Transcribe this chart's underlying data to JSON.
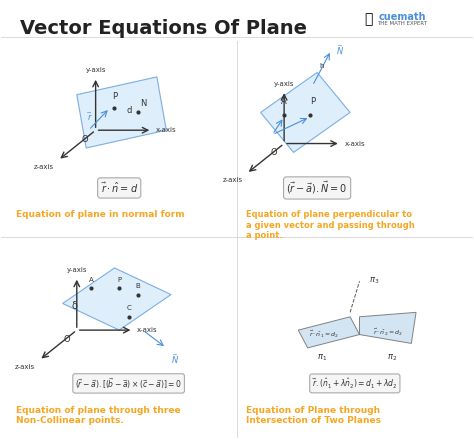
{
  "title": "Vector Equations Of Plane",
  "title_fontsize": 14,
  "title_color": "#222222",
  "bg_color": "#ffffff",
  "orange_color": "#f5a623",
  "blue_color": "#4a90d9",
  "light_blue": "#d0e8f8",
  "axis_color": "#333333",
  "formula_bg": "#f0f0f0",
  "panel1": {
    "formula": "$\\vec{r}\\cdot\\hat{n}=d$",
    "caption": "Equation of plane in normal form"
  },
  "panel2": {
    "formula": "$(\\vec{r}-\\vec{a}).\\vec{N}=0$",
    "caption": "Equation of plane perpendicular to\na given vector and passing through\na point."
  },
  "panel3": {
    "formula": "$(\\vec{r}-\\vec{a}).[(\\vec{b}-\\vec{a})\\times(\\vec{c}-\\vec{a})]=0$",
    "caption": "Equation of plane through three\nNon-Collinear points."
  },
  "panel4": {
    "formula": "$\\vec{r}.(\\hat{n}_1+\\lambda\\hat{n}_2)=d_1+\\lambda d_2$",
    "caption": "Equation of Plane through\nIntersection of Two Planes"
  }
}
